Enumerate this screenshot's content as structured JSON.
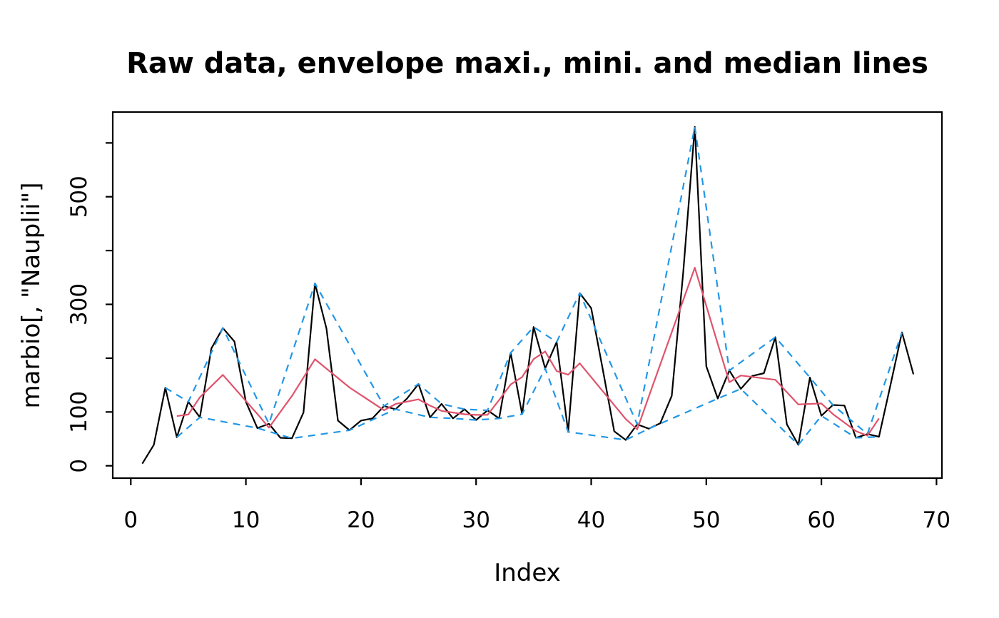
{
  "figure": {
    "title": "Raw data, envelope maxi., mini. and median lines",
    "x_axis_label": "Index",
    "y_axis_label": "marbio[, \"Nauplii\"]",
    "background": "#ffffff"
  },
  "chart_data": {
    "type": "line",
    "title": "Raw data, envelope maxi., mini. and median lines",
    "xlabel": "Index",
    "ylabel": "marbio[, \"Nauplii\"]",
    "x": [
      1,
      2,
      3,
      4,
      5,
      6,
      7,
      8,
      9,
      10,
      11,
      12,
      13,
      14,
      15,
      16,
      17,
      18,
      19,
      20,
      21,
      22,
      23,
      24,
      25,
      26,
      27,
      28,
      29,
      30,
      31,
      32,
      33,
      34,
      35,
      36,
      37,
      38,
      39,
      40,
      41,
      42,
      43,
      44,
      45,
      46,
      47,
      48,
      49,
      50,
      51,
      52,
      53,
      54,
      55,
      56,
      57,
      58,
      59,
      60,
      61,
      62,
      63,
      64,
      65,
      66,
      67,
      68
    ],
    "series": [
      {
        "name": "raw-data",
        "label": "Raw data",
        "color": "#000000",
        "style": "solid",
        "values": [
          4,
          39,
          145,
          53,
          119,
          90,
          218,
          256,
          231,
          119,
          70,
          78,
          52,
          51,
          99,
          339,
          255,
          84,
          66,
          84,
          88,
          111,
          105,
          125,
          152,
          90,
          115,
          88,
          105,
          85,
          103,
          88,
          210,
          96,
          258,
          181,
          230,
          63,
          321,
          293,
          180,
          64,
          48,
          77,
          69,
          79,
          130,
          360,
          630,
          185,
          125,
          177,
          143,
          167,
          172,
          239,
          77,
          39,
          164,
          93,
          113,
          112,
          52,
          59,
          54,
          150,
          248,
          170
        ]
      },
      {
        "name": "envelope-max",
        "label": "Envelope maxi.",
        "color": "#2297E6",
        "style": "dashed",
        "derived": "polyline joining successive local maxima (peaks) of raw-data"
      },
      {
        "name": "envelope-min",
        "label": "Envelope mini.",
        "color": "#2297E6",
        "style": "dashed",
        "derived": "polyline joining successive local minima (pits) of raw-data"
      },
      {
        "name": "median",
        "label": "Median line",
        "color": "#DF536B",
        "style": "solid",
        "derived": "midline (envelope-max + envelope-min)/2 evaluated at every turning point, drawn from second to second-to-last turning point"
      }
    ],
    "xlim": [
      0,
      70
    ],
    "ylim": [
      0,
      657
    ],
    "x_ticks": [
      0,
      10,
      20,
      30,
      40,
      50,
      60,
      70
    ],
    "y_ticks": [
      0,
      100,
      200,
      300,
      400,
      500,
      600
    ],
    "y_tick_labels_shown": [
      0,
      100,
      300,
      500
    ],
    "grid": false,
    "legend": false,
    "axis_color": "#000000",
    "tick_label_font_px": 31
  }
}
